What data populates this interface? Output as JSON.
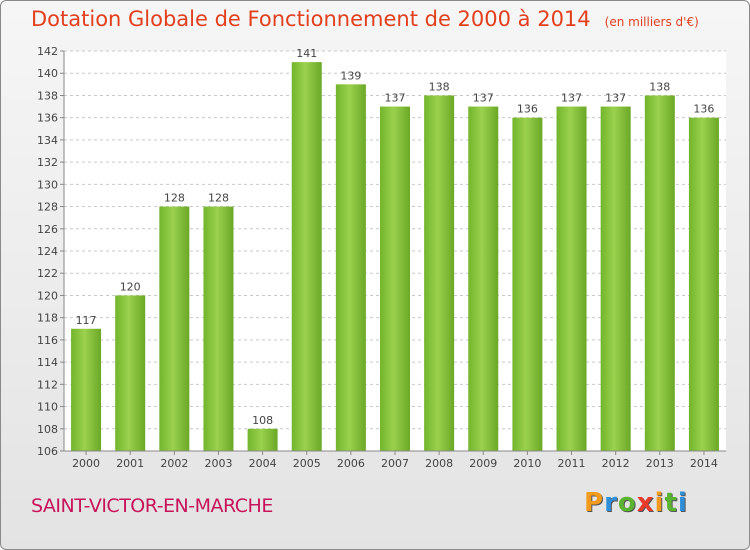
{
  "header": {
    "title": "Dotation Globale de Fonctionnement de 2000 à 2014",
    "subtitle": "(en milliers d'€)"
  },
  "footer": {
    "commune": "SAINT-VICTOR-EN-MARCHE"
  },
  "logo": {
    "letters": [
      "P",
      "r",
      "o",
      "x",
      "i",
      "t",
      "i"
    ],
    "colors": [
      "#f29a1b",
      "#2e8fd8",
      "#5ab431",
      "#e83b2b",
      "#f29a1b",
      "#5ab431",
      "#2e8fd8"
    ]
  },
  "chart_data": {
    "type": "bar",
    "categories": [
      "2000",
      "2001",
      "2002",
      "2003",
      "2004",
      "2005",
      "2006",
      "2007",
      "2008",
      "2009",
      "2010",
      "2011",
      "2012",
      "2013",
      "2014"
    ],
    "values": [
      117,
      120,
      128,
      128,
      108,
      141,
      139,
      137,
      138,
      137,
      136,
      137,
      137,
      138,
      136
    ],
    "title": "Dotation Globale de Fonctionnement de 2000 à 2014",
    "subtitle": "(en milliers d'€)",
    "ylim": [
      106,
      142
    ],
    "yticks": [
      106,
      108,
      110,
      112,
      114,
      116,
      118,
      120,
      122,
      124,
      126,
      128,
      130,
      132,
      134,
      136,
      138,
      140,
      142
    ],
    "grid": true,
    "bar_color": "#82c23c"
  }
}
